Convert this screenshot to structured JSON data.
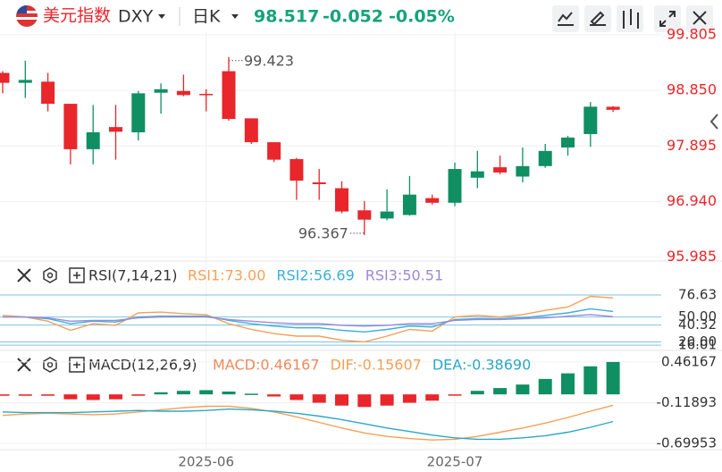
{
  "header": {
    "name": "美元指数",
    "symbol": "DXY",
    "period": "日K",
    "price": "98.517",
    "change": "-0.052",
    "change_pct": "-0.05%"
  },
  "chart_data": [
    {
      "type": "candlestick",
      "categories": [
        null,
        null,
        null,
        null,
        null,
        null,
        null,
        null,
        null,
        "2025-06",
        null,
        null,
        null,
        null,
        null,
        null,
        null,
        null,
        null,
        null,
        "2025-07",
        null,
        null,
        null,
        null,
        null,
        null,
        null
      ],
      "open": [
        99.15,
        98.98,
        99.0,
        98.62,
        97.84,
        98.22,
        98.13,
        98.81,
        98.84,
        98.79,
        99.18,
        98.37,
        97.96,
        97.67,
        97.27,
        97.17,
        96.79,
        96.65,
        96.71,
        97.0,
        96.92,
        97.35,
        97.53,
        97.37,
        97.55,
        97.87,
        98.1,
        98.569
      ],
      "high": [
        99.18,
        99.36,
        99.15,
        98.62,
        98.6,
        98.6,
        98.84,
        98.97,
        99.12,
        98.87,
        99.423,
        98.37,
        97.96,
        97.69,
        97.5,
        97.29,
        96.95,
        97.15,
        97.38,
        97.06,
        97.61,
        97.81,
        97.73,
        97.87,
        97.93,
        98.07,
        98.65,
        98.58
      ],
      "low": [
        98.8,
        98.72,
        98.49,
        97.58,
        97.58,
        97.66,
        97.99,
        98.45,
        98.75,
        98.49,
        98.33,
        97.93,
        97.62,
        96.97,
        96.97,
        96.74,
        96.367,
        96.62,
        96.7,
        96.89,
        96.86,
        97.17,
        97.41,
        97.27,
        97.52,
        97.73,
        97.88,
        98.48
      ],
      "close": [
        98.98,
        99.03,
        98.62,
        97.84,
        98.13,
        98.14,
        98.8,
        98.87,
        98.77,
        98.78,
        98.36,
        97.96,
        97.66,
        97.3,
        97.24,
        96.77,
        96.63,
        96.77,
        97.06,
        96.92,
        97.5,
        97.46,
        97.44,
        97.55,
        97.81,
        98.04,
        98.57,
        98.517
      ],
      "up_color": "#0f8f62",
      "down_color": "#e8262b",
      "ylim": [
        95.95,
        99.85
      ],
      "yticks": [
        99.805,
        {
          "value": 98.85,
          "label": "98.850"
        },
        97.895,
        {
          "value": 96.94,
          "label": "96.940"
        },
        95.985
      ],
      "grid": true
    },
    {
      "type": "line",
      "title": "RSI(7,14,21)",
      "series": [
        {
          "name": "RSI1:73.00",
          "color": "#f5a057",
          "values": [
            52,
            50,
            45,
            34,
            42,
            40,
            55,
            56,
            54,
            53,
            42,
            35,
            30,
            27,
            27,
            22,
            20,
            27,
            35,
            33,
            50,
            52,
            50,
            53,
            58,
            62,
            75,
            73.0
          ]
        },
        {
          "name": "RSI2:56.69",
          "color": "#3bafd8",
          "values": [
            50,
            50,
            48,
            42,
            45,
            44,
            50,
            51,
            51,
            51,
            46,
            42,
            39,
            37,
            37,
            34,
            32,
            35,
            39,
            38,
            47,
            48,
            48,
            49,
            52,
            55,
            60,
            56.69
          ]
        },
        {
          "name": "RSI3:50.51",
          "color": "#9b8ad8",
          "values": [
            50,
            50,
            49,
            45,
            46,
            46,
            49,
            50,
            50,
            50,
            47,
            45,
            43,
            42,
            42,
            40,
            39,
            40,
            42,
            42,
            46,
            47,
            47,
            48,
            49,
            51,
            53,
            50.51
          ]
        }
      ],
      "ylim": [
        14,
        82
      ],
      "yticks": [
        76.63,
        {
          "value": 50,
          "label": "50.00"
        },
        40.32,
        16.01,
        {
          "value": 20,
          "label": "20.00"
        }
      ]
    },
    {
      "type": "macd",
      "title": "MACD(12,26,9)",
      "series": [
        {
          "name": "MACD:0.46167",
          "color": "#ee8a5c",
          "kind": "bar",
          "up_color": "#0f8f62",
          "down_color": "#e8262b",
          "values": [
            -0.02,
            -0.02,
            -0.02,
            -0.07,
            -0.08,
            -0.07,
            -0.02,
            0.03,
            0.05,
            0.06,
            0.04,
            0.01,
            -0.03,
            -0.08,
            -0.12,
            -0.16,
            -0.18,
            -0.16,
            -0.12,
            -0.09,
            -0.01,
            0.05,
            0.09,
            0.14,
            0.22,
            0.3,
            0.4,
            0.46167
          ]
        },
        {
          "name": "DIF:-0.15607",
          "color": "#f5a057",
          "kind": "line",
          "values": [
            -0.3,
            -0.28,
            -0.27,
            -0.28,
            -0.29,
            -0.28,
            -0.25,
            -0.22,
            -0.19,
            -0.17,
            -0.17,
            -0.2,
            -0.25,
            -0.32,
            -0.4,
            -0.48,
            -0.55,
            -0.6,
            -0.63,
            -0.65,
            -0.64,
            -0.6,
            -0.54,
            -0.48,
            -0.41,
            -0.33,
            -0.24,
            -0.15607
          ]
        },
        {
          "name": "DEA:-0.38690",
          "color": "#2aa8c8",
          "kind": "line",
          "values": [
            -0.25,
            -0.26,
            -0.26,
            -0.26,
            -0.25,
            -0.24,
            -0.23,
            -0.24,
            -0.24,
            -0.23,
            -0.21,
            -0.22,
            -0.24,
            -0.27,
            -0.31,
            -0.36,
            -0.42,
            -0.48,
            -0.53,
            -0.58,
            -0.62,
            -0.64,
            -0.64,
            -0.62,
            -0.59,
            -0.54,
            -0.47,
            -0.3869
          ]
        }
      ],
      "ylim": [
        -0.75,
        0.55
      ],
      "yticks": [
        0.46167,
        -0.11893,
        -0.69953
      ]
    }
  ]
}
